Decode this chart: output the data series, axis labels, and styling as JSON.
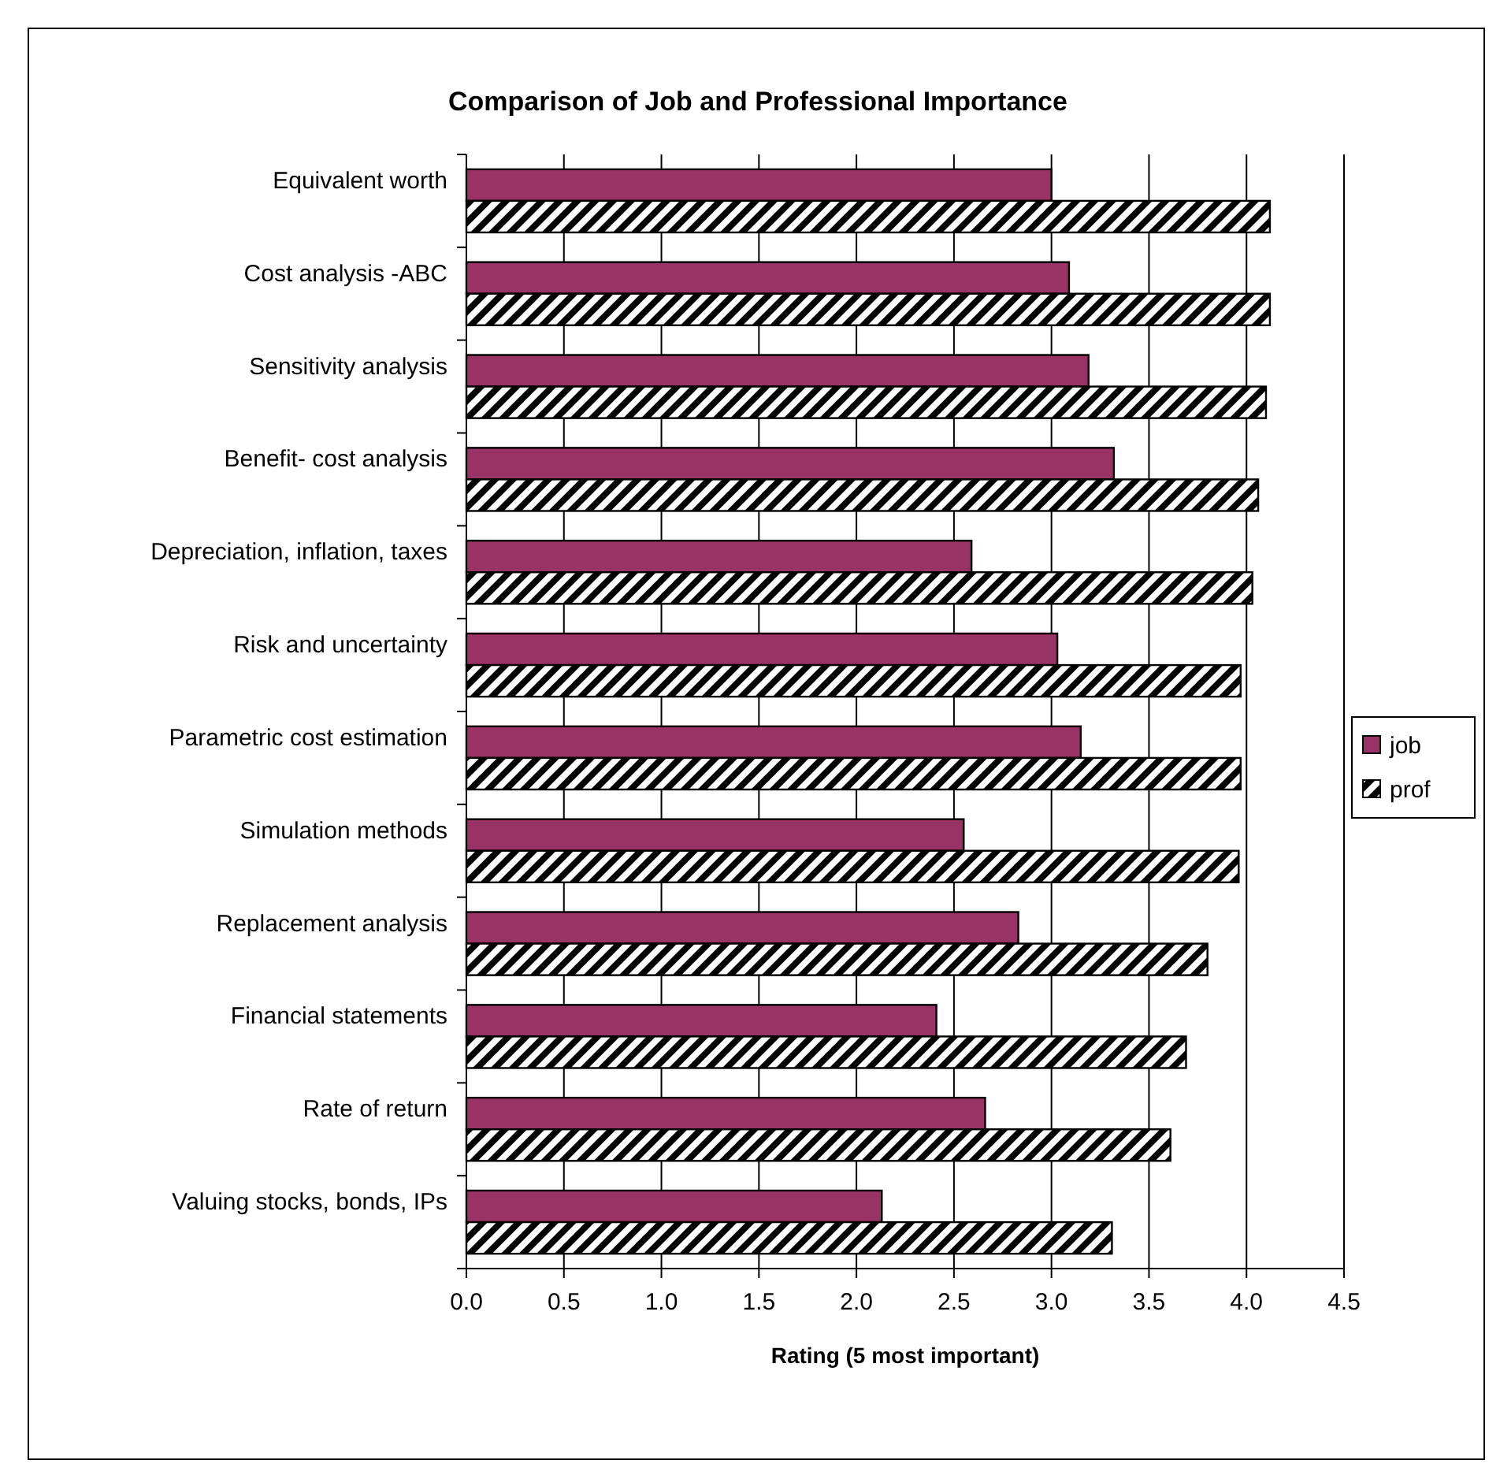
{
  "chart_data": {
    "type": "bar",
    "orientation": "horizontal",
    "title": "Comparison of Job and Professional Importance",
    "xlabel": "Rating (5 most important)",
    "categories": [
      "Equivalent worth",
      "Cost analysis -ABC",
      "Sensitivity analysis",
      "Benefit- cost analysis",
      "Depreciation, inflation, taxes",
      "Risk and uncertainty",
      "Parametric cost estimation",
      "Simulation methods",
      "Replacement analysis",
      "Financial statements",
      "Rate of return",
      "Valuing stocks, bonds, IPs"
    ],
    "series": [
      {
        "name": "job",
        "color": "#993366",
        "values": [
          3.0,
          3.09,
          3.19,
          3.32,
          2.59,
          3.03,
          3.15,
          2.55,
          2.83,
          2.41,
          2.66,
          2.13
        ]
      },
      {
        "name": "prof",
        "color": "#000000",
        "values": [
          4.12,
          4.12,
          4.1,
          4.06,
          4.03,
          3.97,
          3.97,
          3.96,
          3.8,
          3.69,
          3.61,
          3.31
        ]
      }
    ],
    "xlim": [
      0,
      4.5
    ],
    "xticks": [
      {
        "value": 0,
        "label": "0.0"
      },
      {
        "value": 0.5,
        "label": "0.5"
      },
      {
        "value": 1,
        "label": "1.0"
      },
      {
        "value": 1.5,
        "label": "1.5"
      },
      {
        "value": 2,
        "label": "2.0"
      },
      {
        "value": 2.5,
        "label": "2.5"
      },
      {
        "value": 3,
        "label": "3.0"
      },
      {
        "value": 3.5,
        "label": "3.5"
      },
      {
        "value": 4,
        "label": "4.0"
      },
      {
        "value": 4.5,
        "label": "4.5"
      }
    ],
    "grid": "x",
    "legend": "right"
  }
}
